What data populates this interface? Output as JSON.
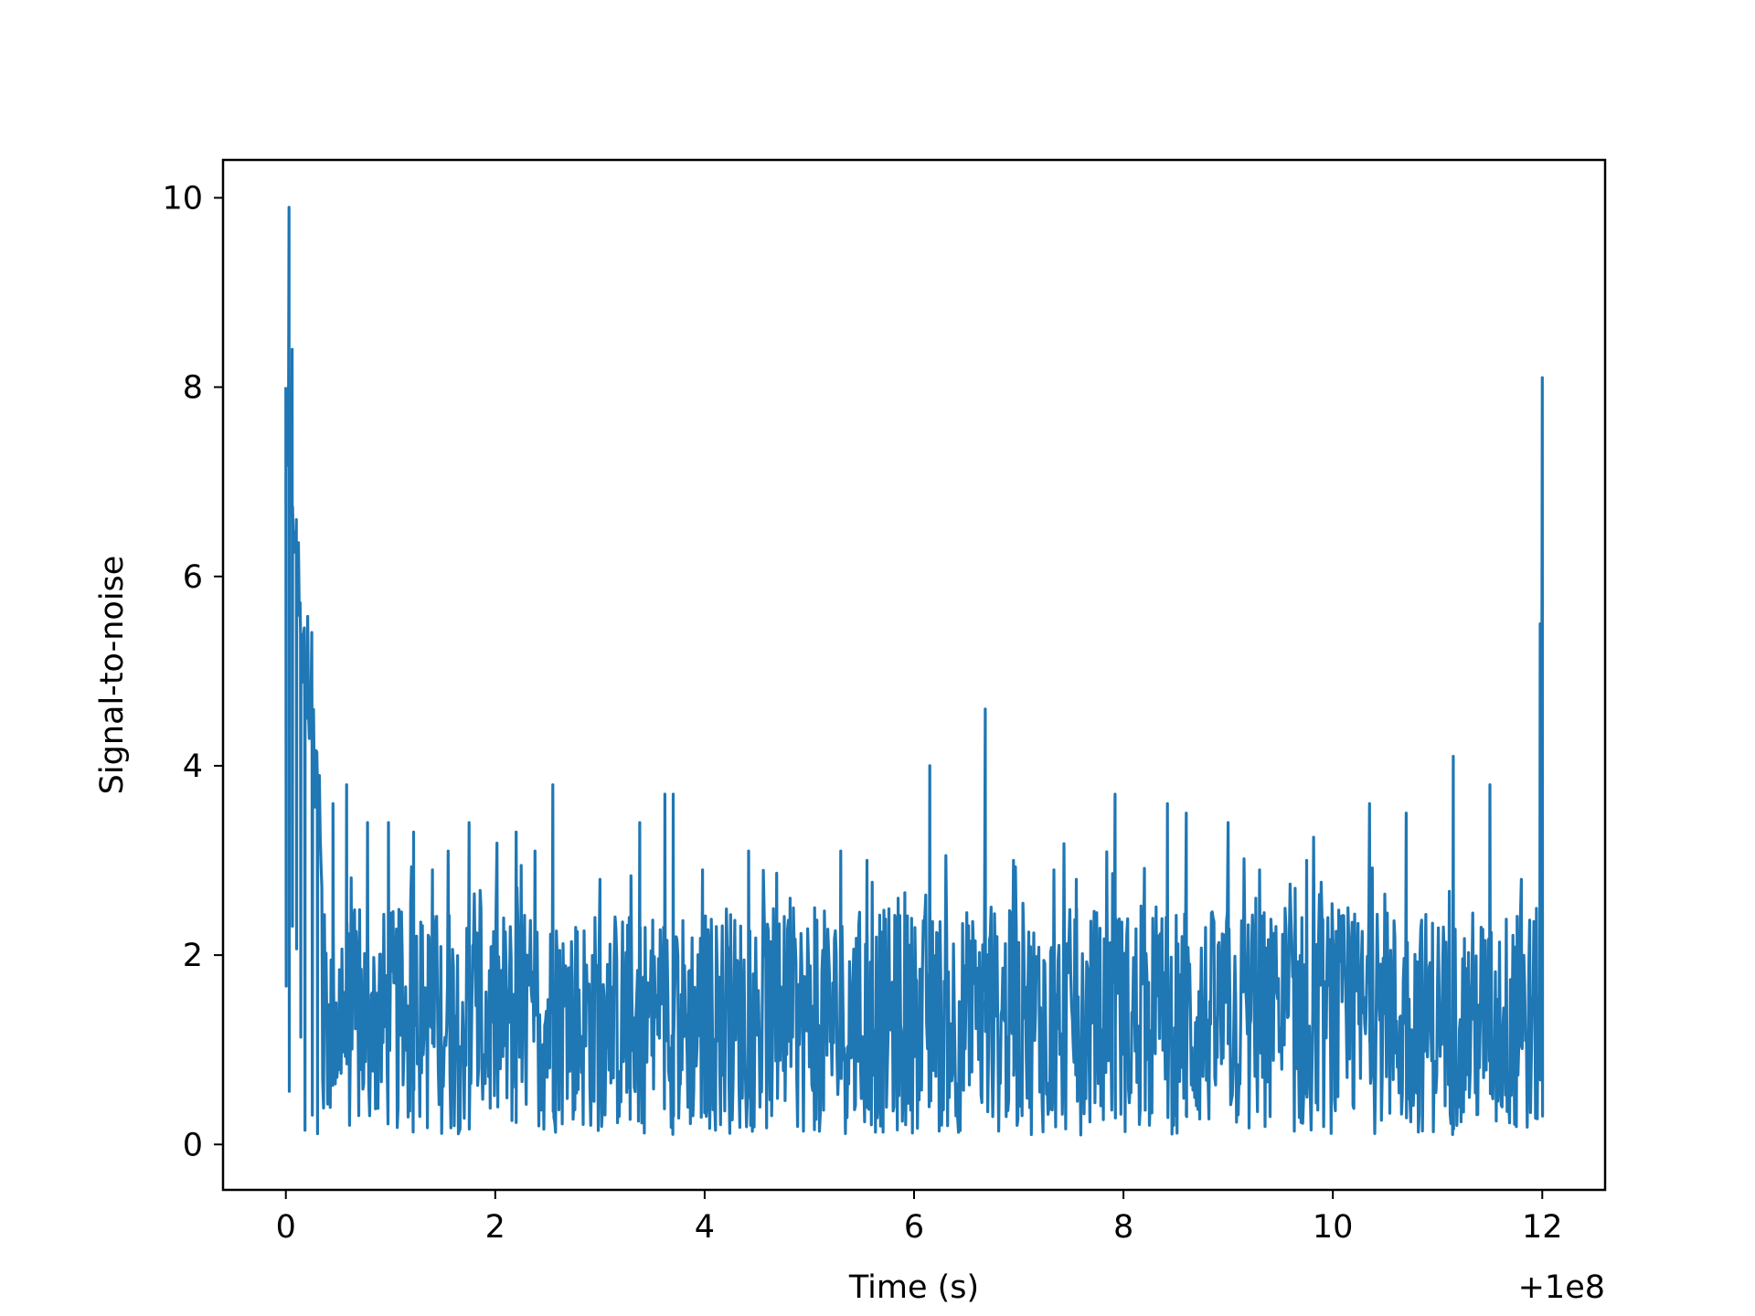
{
  "chart_data": {
    "type": "line",
    "title": "",
    "xlabel": "Time (s)",
    "ylabel": "Signal-to-noise",
    "x_offset_text": "+1e8",
    "xlim": [
      -0.6,
      12.6
    ],
    "ylim": [
      -0.48,
      10.4
    ],
    "grid": false,
    "legend": "none",
    "line_color": "#1f77b4",
    "x_ticks": [
      0,
      2,
      4,
      6,
      8,
      10,
      12
    ],
    "x_tick_labels": [
      "0",
      "2",
      "4",
      "6",
      "8",
      "10",
      "12"
    ],
    "y_ticks": [
      0,
      2,
      4,
      6,
      8,
      10
    ],
    "y_tick_labels": [
      "0",
      "2",
      "4",
      "6",
      "8",
      "10"
    ],
    "series": [
      {
        "baseline_range": [
          0.1,
          2.5
        ],
        "peaks": [
          {
            "x": 0.0,
            "y": 8.0
          },
          {
            "x": 0.03,
            "y": 9.9
          },
          {
            "x": 0.06,
            "y": 8.4
          },
          {
            "x": 0.1,
            "y": 6.6
          },
          {
            "x": 0.14,
            "y": 5.4
          },
          {
            "x": 0.18,
            "y": 4.7
          },
          {
            "x": 0.25,
            "y": 4.2
          },
          {
            "x": 0.3,
            "y": 3.9
          },
          {
            "x": 0.45,
            "y": 3.6
          },
          {
            "x": 0.58,
            "y": 3.8
          },
          {
            "x": 0.78,
            "y": 3.4
          },
          {
            "x": 0.98,
            "y": 3.4
          },
          {
            "x": 1.22,
            "y": 3.3
          },
          {
            "x": 1.4,
            "y": 2.9
          },
          {
            "x": 1.55,
            "y": 3.1
          },
          {
            "x": 1.75,
            "y": 3.4
          },
          {
            "x": 2.2,
            "y": 3.3
          },
          {
            "x": 2.38,
            "y": 3.1
          },
          {
            "x": 2.55,
            "y": 3.8
          },
          {
            "x": 3.0,
            "y": 2.8
          },
          {
            "x": 3.38,
            "y": 3.4
          },
          {
            "x": 3.62,
            "y": 3.7
          },
          {
            "x": 3.7,
            "y": 3.7
          },
          {
            "x": 3.98,
            "y": 2.9
          },
          {
            "x": 4.42,
            "y": 3.1
          },
          {
            "x": 5.05,
            "y": 2.5
          },
          {
            "x": 5.3,
            "y": 3.1
          },
          {
            "x": 5.55,
            "y": 3.0
          },
          {
            "x": 6.15,
            "y": 4.0
          },
          {
            "x": 6.68,
            "y": 4.6
          },
          {
            "x": 6.95,
            "y": 3.0
          },
          {
            "x": 7.55,
            "y": 2.8
          },
          {
            "x": 7.92,
            "y": 3.7
          },
          {
            "x": 8.42,
            "y": 3.6
          },
          {
            "x": 8.6,
            "y": 3.5
          },
          {
            "x": 9.0,
            "y": 3.4
          },
          {
            "x": 9.3,
            "y": 2.9
          },
          {
            "x": 9.75,
            "y": 3.0
          },
          {
            "x": 10.35,
            "y": 3.6
          },
          {
            "x": 10.7,
            "y": 3.5
          },
          {
            "x": 11.15,
            "y": 4.1
          },
          {
            "x": 11.5,
            "y": 3.8
          },
          {
            "x": 11.8,
            "y": 2.8
          },
          {
            "x": 11.98,
            "y": 5.5
          },
          {
            "x": 12.0,
            "y": 8.1
          }
        ]
      }
    ]
  }
}
